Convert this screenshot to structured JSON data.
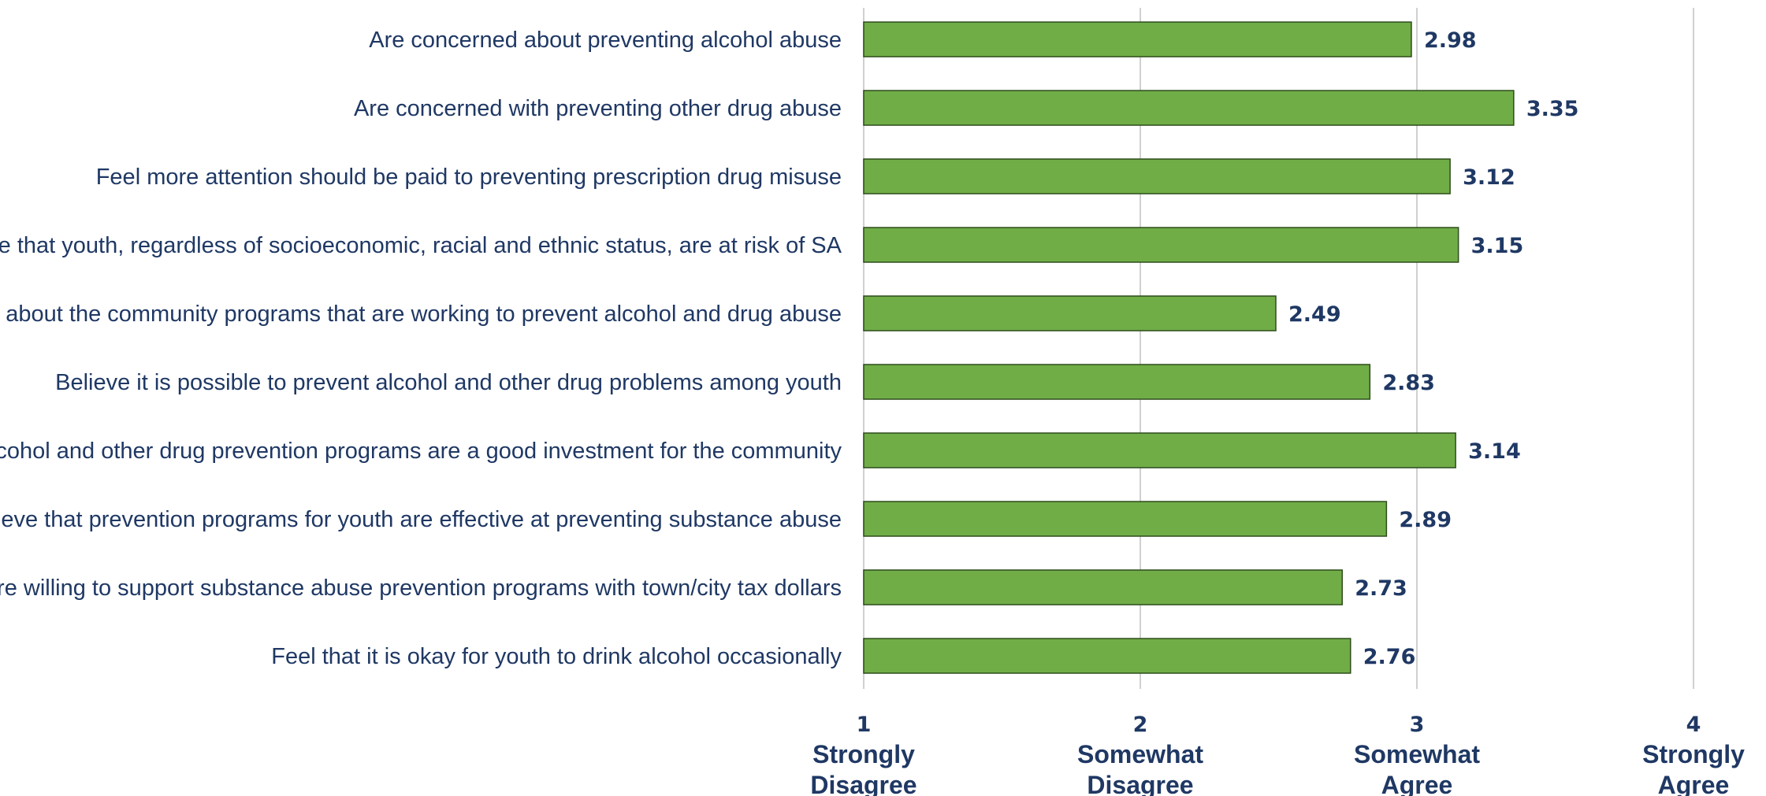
{
  "chart_data": {
    "type": "bar",
    "orientation": "horizontal",
    "categories": [
      "Are concerned about preventing alcohol abuse",
      "Are concerned with preventing other drug abuse",
      "Feel more attention should be paid to preventing prescription drug misuse",
      "Believe that youth, regardless of socioeconomic, racial and ethnic status, are at risk of SA",
      "Know about the community programs that are working to prevent alcohol and drug abuse",
      "Believe it is possible to prevent alcohol and other drug problems among youth",
      "Feel alcohol and other drug prevention programs are a good investment for the community",
      "Believe that prevention programs for youth are effective at preventing substance abuse",
      "Are willing to support substance abuse prevention programs with town/city tax dollars",
      "Feel that it is okay for youth to drink alcohol occasionally"
    ],
    "values": [
      2.98,
      3.35,
      3.12,
      3.15,
      2.49,
      2.83,
      3.14,
      2.89,
      2.73,
      2.76
    ],
    "value_labels": [
      "2.98",
      "3.35",
      "3.12",
      "3.15",
      "2.49",
      "2.83",
      "3.14",
      "2.89",
      "2.73",
      "2.76"
    ],
    "xlim": [
      1,
      4
    ],
    "xticks": [
      {
        "value": 1,
        "number": "1",
        "lines": [
          "Strongly",
          "Disagree"
        ]
      },
      {
        "value": 2,
        "number": "2",
        "lines": [
          "Somewhat",
          "Disagree"
        ]
      },
      {
        "value": 3,
        "number": "3",
        "lines": [
          "Somewhat",
          "Agree"
        ]
      },
      {
        "value": 4,
        "number": "4",
        "lines": [
          "Strongly",
          "Agree"
        ]
      }
    ],
    "grid": true,
    "legend": "none",
    "colors": {
      "bar": "#70ad47",
      "bar_edge": "#2e4d1b",
      "grid": "#d0d0d0",
      "text": "#1f3864"
    }
  }
}
